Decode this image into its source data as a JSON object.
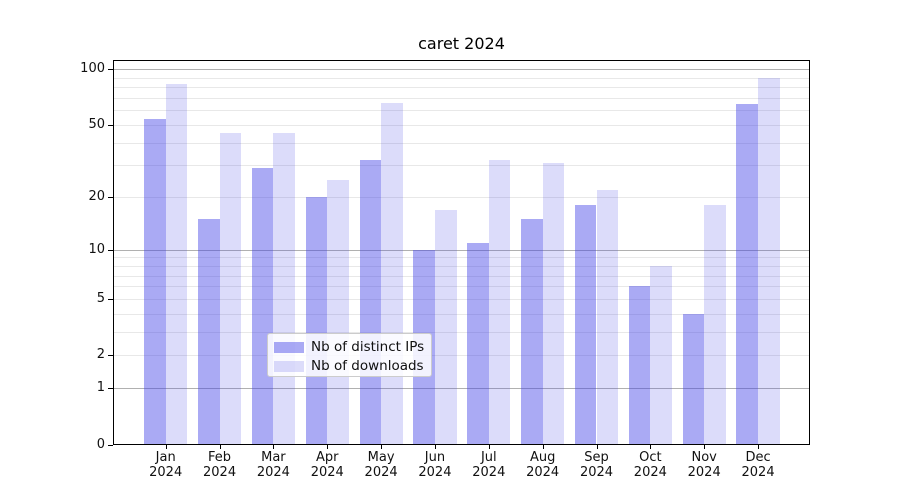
{
  "chart_data": {
    "type": "bar",
    "title": "caret 2024",
    "categories": [
      "Jan",
      "Feb",
      "Mar",
      "Apr",
      "May",
      "Jun",
      "Jul",
      "Aug",
      "Sep",
      "Oct",
      "Nov",
      "Dec"
    ],
    "year_label": "2024",
    "series": [
      {
        "name": "Nb of distinct IPs",
        "color": "rgba(67,67,230,0.45)",
        "values": [
          54,
          15,
          29,
          20,
          32,
          10,
          11,
          15,
          18,
          6,
          4,
          65
        ]
      },
      {
        "name": "Nb of downloads",
        "color": "rgba(67,67,230,0.19)",
        "values": [
          83,
          45,
          45,
          25,
          66,
          17,
          32,
          31,
          22,
          8,
          18,
          90
        ]
      }
    ],
    "xlabel": "",
    "ylabel": "",
    "y_axis": {
      "scale": "log1p",
      "tick_values": [
        100,
        50,
        20,
        10,
        5,
        2,
        1,
        0
      ],
      "tick_labels": [
        "100",
        "50",
        "20",
        "10",
        "5",
        "2",
        "1",
        "0"
      ],
      "major_gridlines": [
        1,
        10,
        100
      ],
      "minor_gridlines": [
        2,
        3,
        4,
        5,
        6,
        7,
        8,
        9,
        20,
        30,
        40,
        50,
        60,
        70,
        80,
        90
      ],
      "ylim": [
        0,
        112
      ]
    },
    "grid": true,
    "legend": {
      "position": "lower center",
      "entries": [
        "Nb of distinct IPs",
        "Nb of downloads"
      ]
    }
  },
  "colors": {
    "background": "#ffffff",
    "spine": "#000000",
    "major_grid": "#b0b0b0",
    "minor_grid": "#e8e8e8",
    "text": "#111111",
    "bar_dark": "rgba(67,67,230,0.45)",
    "bar_light": "rgba(67,67,230,0.19)"
  }
}
